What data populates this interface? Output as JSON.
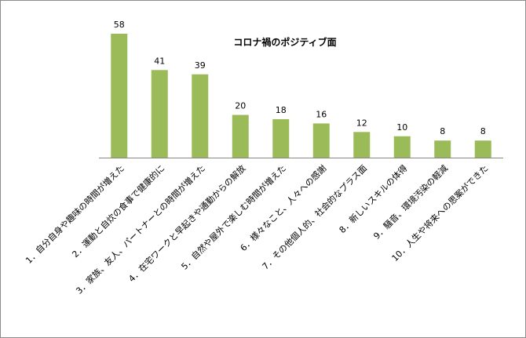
{
  "chart_data": {
    "type": "bar",
    "title": "コロナ禍のポジティブ面",
    "categories": [
      "1．自分自身や趣味の時間が増えた",
      "2．運動と自炊の食事で健康的に",
      "3．家族、友人、パートナーとの時間が増えた",
      "4．在宅ワークと早起きや通勤からの解放",
      "5．自然や屋外で楽しむ時間が増えた",
      "6．様々なこと、人々への感謝",
      "7．その他個人的、社会的なプラス面",
      "8．新しいスキルの体得",
      "9．騒音、環境汚染の軽減",
      "10．人生や将来への思案ができた"
    ],
    "values": [
      58,
      41,
      39,
      20,
      18,
      16,
      12,
      10,
      8,
      8
    ],
    "ylim": [
      0,
      58
    ],
    "grid": false,
    "legend": "none",
    "colors": {
      "bar": "#9bbb59",
      "axis": "#868686"
    }
  }
}
